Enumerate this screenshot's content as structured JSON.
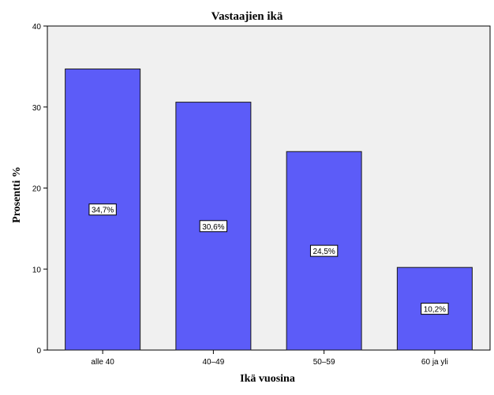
{
  "chart_data": {
    "type": "bar",
    "title": "Vastaajien ikä",
    "xlabel": "Ikä vuosina",
    "ylabel": "Prosentti %",
    "categories": [
      "alle 40",
      "40–49",
      "50–59",
      "60 ja yli"
    ],
    "values": [
      34.7,
      30.6,
      24.5,
      10.2
    ],
    "data_labels": [
      "34,7%",
      "30,6%",
      "24,5%",
      "10,2%"
    ],
    "ylim": [
      0,
      40
    ],
    "yticks": [
      0,
      10,
      20,
      30,
      40
    ],
    "ytick_labels": [
      "0",
      "10",
      "20",
      "30",
      "40"
    ],
    "grid": false,
    "legend": "none",
    "colors": {
      "bar_fill": "#5c5cf8",
      "bar_stroke": "#1a1a1a",
      "plot_background": "#f0f0f0",
      "page_background": "#ffffff"
    }
  }
}
